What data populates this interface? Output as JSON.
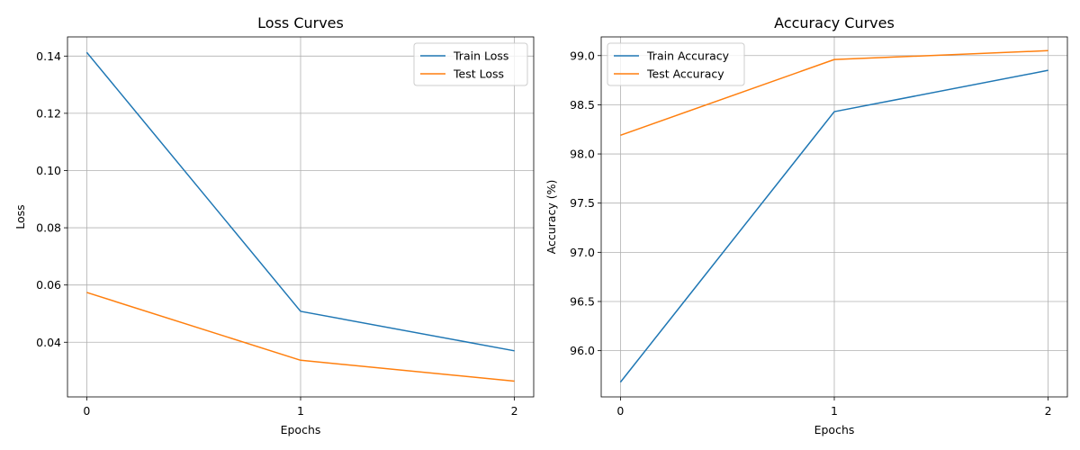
{
  "chart_data": [
    {
      "type": "line",
      "title": "Loss Curves",
      "xlabel": "Epochs",
      "ylabel": "Loss",
      "x": [
        0,
        1,
        2
      ],
      "xticks": [
        "0",
        "1",
        "2"
      ],
      "xlim": [
        -0.09,
        2.09
      ],
      "ylim": [
        0.0209,
        0.1467
      ],
      "yticks": [
        "0.04",
        "0.06",
        "0.08",
        "0.10",
        "0.12",
        "0.14"
      ],
      "ytick_values": [
        0.04,
        0.06,
        0.08,
        0.1,
        0.12,
        0.14
      ],
      "grid": true,
      "legend_position": "upper right",
      "series": [
        {
          "name": "Train Loss",
          "color": "#1f77b4",
          "values": [
            0.1413,
            0.0508,
            0.037
          ]
        },
        {
          "name": "Test Loss",
          "color": "#ff7f0e",
          "values": [
            0.0574,
            0.0337,
            0.0264
          ]
        }
      ]
    },
    {
      "type": "line",
      "title": "Accuracy Curves",
      "xlabel": "Epochs",
      "ylabel": "Accuracy (%)",
      "x": [
        0,
        1,
        2
      ],
      "xticks": [
        "0",
        "1",
        "2"
      ],
      "xlim": [
        -0.09,
        2.09
      ],
      "ylim": [
        95.53,
        99.19
      ],
      "yticks": [
        "96.0",
        "96.5",
        "97.0",
        "97.5",
        "98.0",
        "98.5",
        "99.0"
      ],
      "ytick_values": [
        96.0,
        96.5,
        97.0,
        97.5,
        98.0,
        98.5,
        99.0
      ],
      "grid": true,
      "legend_position": "upper left",
      "series": [
        {
          "name": "Train Accuracy",
          "color": "#1f77b4",
          "values": [
            95.68,
            98.43,
            98.85
          ]
        },
        {
          "name": "Test Accuracy",
          "color": "#ff7f0e",
          "values": [
            98.19,
            98.96,
            99.05
          ]
        }
      ]
    }
  ]
}
